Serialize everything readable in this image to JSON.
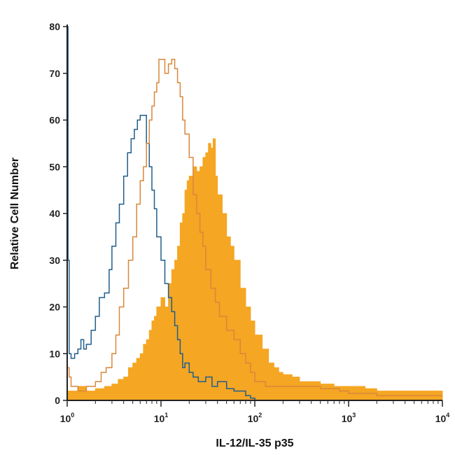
{
  "chart_data": {
    "type": "area",
    "xlabel": "IL-12/IL-35 p35",
    "ylabel": "Relative Cell Number",
    "xscale": "log",
    "xlim": [
      1,
      10000
    ],
    "ylim": [
      0,
      80
    ],
    "yticks": [
      0,
      10,
      20,
      30,
      40,
      50,
      60,
      70,
      80
    ],
    "xticks": [
      {
        "base": "10",
        "exp": "0",
        "value": 1
      },
      {
        "base": "10",
        "exp": "1",
        "value": 10
      },
      {
        "base": "10",
        "exp": "2",
        "value": 100
      },
      {
        "base": "10",
        "exp": "3",
        "value": 1000
      },
      {
        "base": "10",
        "exp": "4",
        "value": 10000
      }
    ],
    "grid": false,
    "series": [
      {
        "style": "filled",
        "color": "#F5A623",
        "points": [
          [
            1.0,
            2
          ],
          [
            1.3,
            3
          ],
          [
            1.6,
            2
          ],
          [
            2.0,
            2.5
          ],
          [
            2.5,
            3
          ],
          [
            3.0,
            3.5
          ],
          [
            3.5,
            4.5
          ],
          [
            4.0,
            5
          ],
          [
            4.5,
            7
          ],
          [
            5.0,
            8
          ],
          [
            5.5,
            9
          ],
          [
            6.0,
            10
          ],
          [
            6.5,
            12
          ],
          [
            7.0,
            13
          ],
          [
            7.5,
            15
          ],
          [
            8.0,
            17
          ],
          [
            8.5,
            18
          ],
          [
            9.0,
            20
          ],
          [
            10,
            22
          ],
          [
            11,
            20
          ],
          [
            12,
            25
          ],
          [
            13,
            28
          ],
          [
            14,
            30
          ],
          [
            15,
            33
          ],
          [
            16,
            38
          ],
          [
            17,
            40
          ],
          [
            18,
            45
          ],
          [
            19,
            47
          ],
          [
            20,
            48
          ],
          [
            22,
            50
          ],
          [
            24,
            49
          ],
          [
            26,
            50
          ],
          [
            28,
            52
          ],
          [
            30,
            53
          ],
          [
            32,
            55
          ],
          [
            34,
            54
          ],
          [
            36,
            56
          ],
          [
            38,
            48
          ],
          [
            40,
            44
          ],
          [
            45,
            40
          ],
          [
            50,
            35
          ],
          [
            55,
            33
          ],
          [
            60,
            30
          ],
          [
            70,
            24
          ],
          [
            80,
            20
          ],
          [
            90,
            17
          ],
          [
            100,
            14
          ],
          [
            120,
            11
          ],
          [
            140,
            8
          ],
          [
            160,
            7
          ],
          [
            180,
            6
          ],
          [
            200,
            5.5
          ],
          [
            250,
            5
          ],
          [
            300,
            4
          ],
          [
            400,
            4
          ],
          [
            500,
            3.5
          ],
          [
            700,
            3
          ],
          [
            1000,
            3
          ],
          [
            1500,
            2.5
          ],
          [
            2000,
            2
          ],
          [
            3000,
            2
          ],
          [
            5000,
            2
          ],
          [
            7000,
            2
          ],
          [
            10000,
            1.5
          ]
        ]
      },
      {
        "style": "outline",
        "color": "#1F5E8C",
        "points": [
          [
            1.0,
            80
          ],
          [
            1.02,
            30
          ],
          [
            1.05,
            10
          ],
          [
            1.1,
            9
          ],
          [
            1.2,
            10
          ],
          [
            1.3,
            11
          ],
          [
            1.4,
            13
          ],
          [
            1.5,
            11
          ],
          [
            1.6,
            12
          ],
          [
            1.8,
            15
          ],
          [
            2.0,
            18
          ],
          [
            2.2,
            22
          ],
          [
            2.5,
            23
          ],
          [
            2.8,
            28
          ],
          [
            3.0,
            33
          ],
          [
            3.3,
            38
          ],
          [
            3.6,
            42
          ],
          [
            4.0,
            48
          ],
          [
            4.4,
            53
          ],
          [
            4.8,
            56
          ],
          [
            5.2,
            58
          ],
          [
            5.6,
            60
          ],
          [
            6.0,
            61
          ],
          [
            6.5,
            61
          ],
          [
            7.0,
            55
          ],
          [
            7.5,
            50
          ],
          [
            8.0,
            45
          ],
          [
            8.5,
            41
          ],
          [
            9.0,
            35
          ],
          [
            10,
            30
          ],
          [
            11,
            25
          ],
          [
            12,
            22
          ],
          [
            13,
            19
          ],
          [
            14,
            16
          ],
          [
            15,
            13
          ],
          [
            16,
            10
          ],
          [
            17,
            7
          ],
          [
            18,
            8
          ],
          [
            20,
            6
          ],
          [
            22,
            5
          ],
          [
            25,
            4
          ],
          [
            30,
            5
          ],
          [
            35,
            3
          ],
          [
            40,
            4
          ],
          [
            50,
            2.5
          ],
          [
            60,
            2
          ],
          [
            70,
            2
          ],
          [
            80,
            1
          ],
          [
            90,
            0.5
          ],
          [
            100,
            0
          ]
        ]
      },
      {
        "style": "outline",
        "color": "#D9873A",
        "points": [
          [
            1.0,
            7
          ],
          [
            1.05,
            5
          ],
          [
            1.1,
            3
          ],
          [
            1.3,
            2
          ],
          [
            1.6,
            3
          ],
          [
            2.0,
            4
          ],
          [
            2.3,
            6
          ],
          [
            2.6,
            7
          ],
          [
            3.0,
            10
          ],
          [
            3.3,
            14
          ],
          [
            3.6,
            20
          ],
          [
            4.0,
            24
          ],
          [
            4.5,
            30
          ],
          [
            5.0,
            35
          ],
          [
            5.5,
            42
          ],
          [
            6.0,
            47
          ],
          [
            6.5,
            50
          ],
          [
            7.0,
            55
          ],
          [
            7.5,
            60
          ],
          [
            8.0,
            63
          ],
          [
            8.5,
            66
          ],
          [
            9.0,
            68
          ],
          [
            9.5,
            73
          ],
          [
            10,
            73
          ],
          [
            11,
            70
          ],
          [
            12,
            72
          ],
          [
            13,
            73
          ],
          [
            14,
            71
          ],
          [
            15,
            68
          ],
          [
            16,
            65
          ],
          [
            17,
            60
          ],
          [
            18,
            57
          ],
          [
            20,
            52
          ],
          [
            22,
            44
          ],
          [
            24,
            40
          ],
          [
            26,
            36
          ],
          [
            28,
            33
          ],
          [
            30,
            28
          ],
          [
            34,
            24
          ],
          [
            38,
            21
          ],
          [
            42,
            18
          ],
          [
            50,
            15
          ],
          [
            60,
            13
          ],
          [
            70,
            10
          ],
          [
            80,
            8
          ],
          [
            90,
            6
          ],
          [
            100,
            4
          ],
          [
            130,
            3
          ],
          [
            200,
            3
          ],
          [
            300,
            3
          ],
          [
            500,
            2.5
          ],
          [
            800,
            2
          ],
          [
            1000,
            1.5
          ],
          [
            1500,
            1.5
          ],
          [
            2000,
            1
          ],
          [
            3000,
            1
          ],
          [
            5000,
            1
          ],
          [
            10000,
            1
          ]
        ]
      }
    ]
  }
}
